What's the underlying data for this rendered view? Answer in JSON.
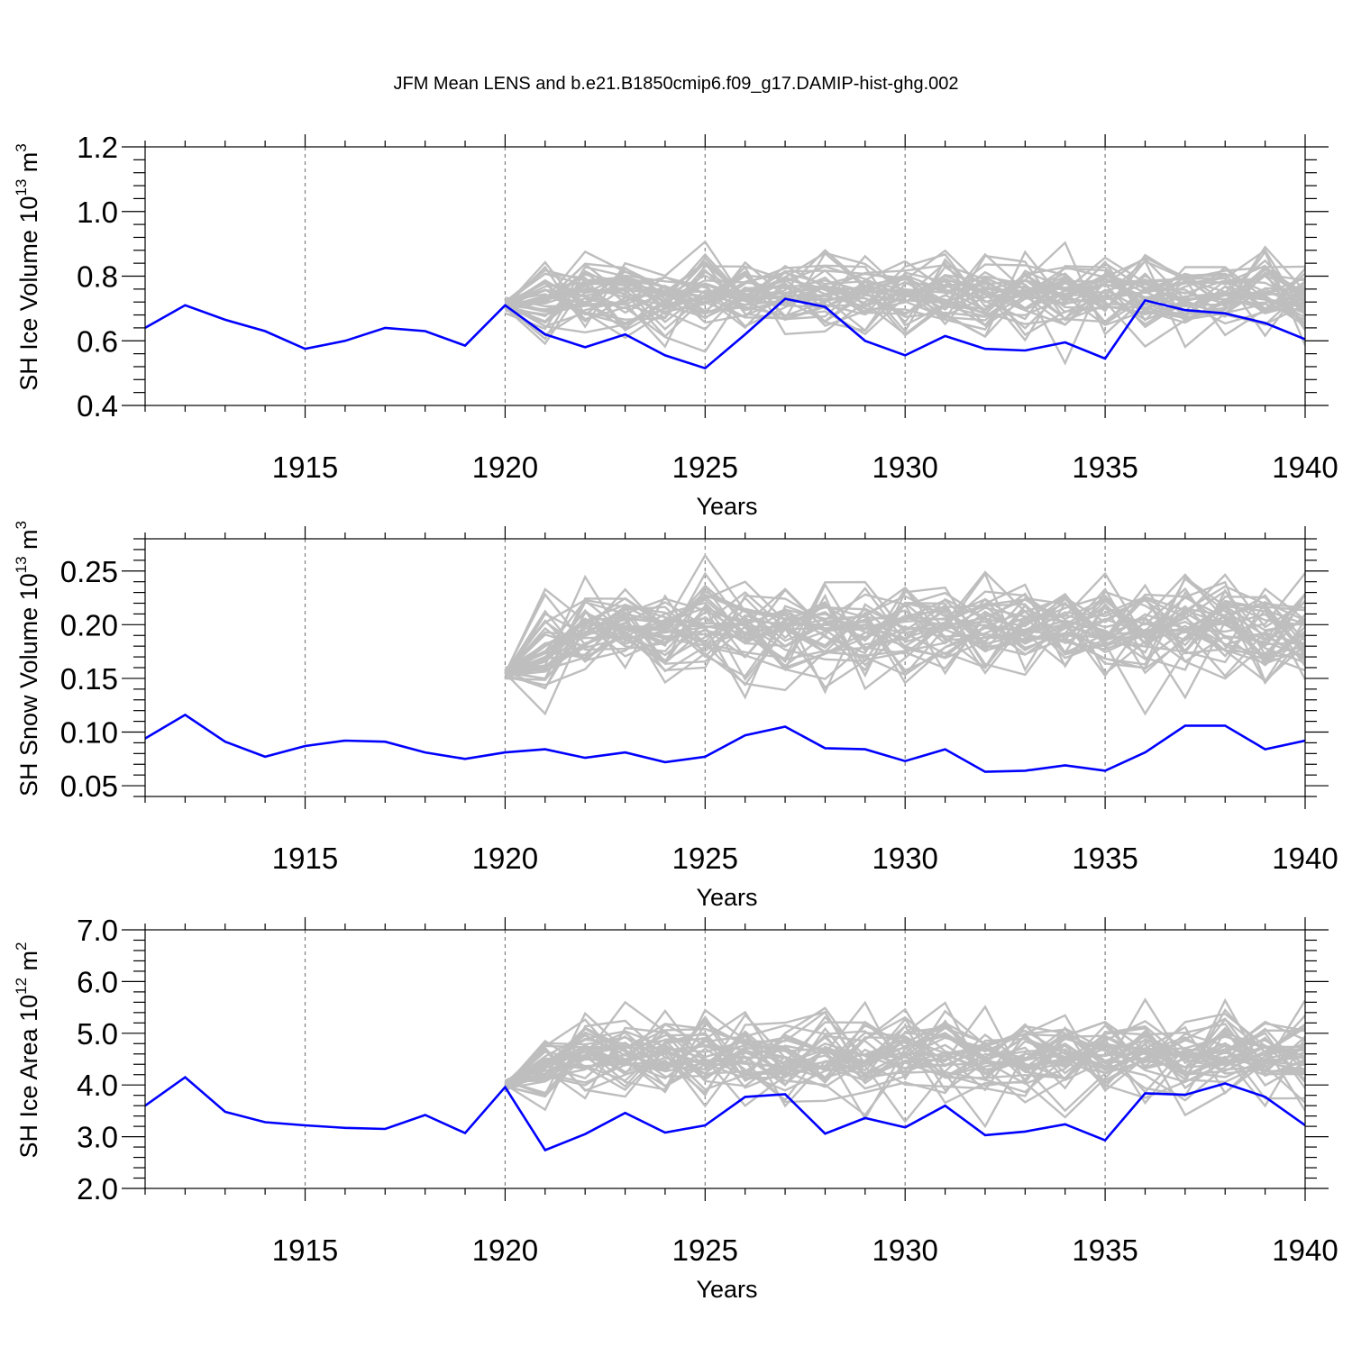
{
  "page_title": "JFM Mean LENS and b.e21.B1850cmip6.f09_g17.DAMIP-hist-ghg.002",
  "colors": {
    "ensemble": "#bebebe",
    "experiment": "#0000ff",
    "axis": "#000000",
    "grid": "#808080"
  },
  "chart_data": [
    {
      "type": "line",
      "title": "",
      "xlabel": "Years",
      "ylabel": {
        "main": "SH Ice Volume 10",
        "exp": "13",
        "mid": " m",
        "unit_exp": "3"
      },
      "xlim": [
        1911,
        1940
      ],
      "ylim": [
        0.4,
        1.2
      ],
      "x_ticks": [
        1915,
        1920,
        1925,
        1930,
        1935,
        1940
      ],
      "y_ticks": [
        0.4,
        0.6,
        0.8,
        1.0,
        1.2
      ],
      "y_tick_labels": [
        "0.4",
        "0.6",
        "0.8",
        "1.0",
        "1.2"
      ],
      "grid": "vertical dashed at major x ticks",
      "experiment": {
        "x": [
          1911,
          1912,
          1913,
          1914,
          1915,
          1916,
          1917,
          1918,
          1919,
          1920,
          1921,
          1922,
          1923,
          1924,
          1925,
          1926,
          1927,
          1928,
          1929,
          1930,
          1931,
          1932,
          1933,
          1934,
          1935,
          1936,
          1937,
          1938,
          1939,
          1940
        ],
        "y": [
          0.64,
          0.71,
          0.665,
          0.63,
          0.575,
          0.6,
          0.64,
          0.63,
          0.585,
          0.71,
          0.62,
          0.58,
          0.62,
          0.555,
          0.515,
          0.62,
          0.73,
          0.705,
          0.6,
          0.555,
          0.615,
          0.575,
          0.57,
          0.595,
          0.545,
          0.725,
          0.695,
          0.685,
          0.655,
          0.605
        ]
      },
      "ensemble": {
        "start_x": 1920,
        "start_y": 0.71,
        "members": 40,
        "mean": 0.74,
        "spread": 0.06,
        "low_clip": 0.48,
        "high_clip": 1.12
      }
    },
    {
      "type": "line",
      "title": "",
      "xlabel": "Years",
      "ylabel": {
        "main": "SH Snow Volume 10",
        "exp": "13",
        "mid": " m",
        "unit_exp": "3"
      },
      "xlim": [
        1911,
        1940
      ],
      "ylim": [
        0.04,
        0.28
      ],
      "x_ticks": [
        1915,
        1920,
        1925,
        1930,
        1935,
        1940
      ],
      "y_ticks": [
        0.05,
        0.1,
        0.15,
        0.2,
        0.25
      ],
      "y_tick_labels": [
        "0.05",
        "0.10",
        "0.15",
        "0.20",
        "0.25"
      ],
      "grid": "vertical dashed at major x ticks",
      "experiment": {
        "x": [
          1911,
          1912,
          1913,
          1914,
          1915,
          1916,
          1917,
          1918,
          1919,
          1920,
          1921,
          1922,
          1923,
          1924,
          1925,
          1926,
          1927,
          1928,
          1929,
          1930,
          1931,
          1932,
          1933,
          1934,
          1935,
          1936,
          1937,
          1938,
          1939,
          1940
        ],
        "y": [
          0.094,
          0.116,
          0.091,
          0.077,
          0.087,
          0.092,
          0.091,
          0.081,
          0.075,
          0.081,
          0.084,
          0.076,
          0.081,
          0.072,
          0.077,
          0.097,
          0.105,
          0.085,
          0.084,
          0.073,
          0.084,
          0.063,
          0.064,
          0.069,
          0.064,
          0.081,
          0.106,
          0.106,
          0.084,
          0.092
        ]
      },
      "ensemble": {
        "start_x": 1920,
        "start_y": 0.155,
        "members": 40,
        "mean": 0.195,
        "spread": 0.022,
        "low_clip": 0.117,
        "high_clip": 0.278
      }
    },
    {
      "type": "line",
      "title": "",
      "xlabel": "Years",
      "ylabel": {
        "main": "SH Ice Area 10",
        "exp": "12",
        "mid": " m",
        "unit_exp": "2"
      },
      "xlim": [
        1911,
        1940
      ],
      "ylim": [
        2.0,
        7.0
      ],
      "x_ticks": [
        1915,
        1920,
        1925,
        1930,
        1935,
        1940
      ],
      "y_ticks": [
        2.0,
        3.0,
        4.0,
        5.0,
        6.0,
        7.0
      ],
      "y_tick_labels": [
        "2.0",
        "3.0",
        "4.0",
        "5.0",
        "6.0",
        "7.0"
      ],
      "grid": "vertical dashed at major x ticks",
      "experiment": {
        "x": [
          1911,
          1912,
          1913,
          1914,
          1915,
          1916,
          1917,
          1918,
          1919,
          1920,
          1921,
          1922,
          1923,
          1924,
          1925,
          1926,
          1927,
          1928,
          1929,
          1930,
          1931,
          1932,
          1933,
          1934,
          1935,
          1936,
          1937,
          1938,
          1939,
          1940
        ],
        "y": [
          3.6,
          4.15,
          3.48,
          3.28,
          3.22,
          3.17,
          3.15,
          3.42,
          3.07,
          3.96,
          2.74,
          3.05,
          3.46,
          3.08,
          3.22,
          3.77,
          3.82,
          3.06,
          3.36,
          3.18,
          3.6,
          3.03,
          3.1,
          3.24,
          2.93,
          3.84,
          3.81,
          4.03,
          3.77,
          3.22
        ]
      },
      "ensemble": {
        "start_x": 1920,
        "start_y": 4.0,
        "members": 40,
        "mean": 4.55,
        "spread": 0.4,
        "low_clip": 3.2,
        "high_clip": 6.5
      }
    }
  ]
}
